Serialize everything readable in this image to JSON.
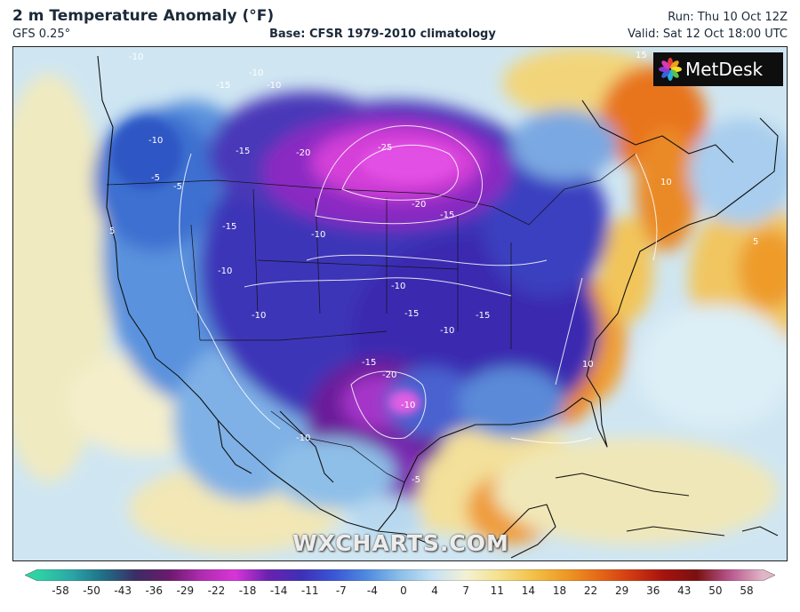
{
  "header": {
    "title": "2 m Temperature Anomaly (°F)",
    "model": "GFS 0.25°",
    "base": "Base: CFSR 1979-2010 climatology",
    "run": "Run: Thu 10 Oct 12Z",
    "valid": "Valid: Sat 12 Oct 18:00 UTC"
  },
  "logo": {
    "text": "MetDesk",
    "icon": "metdesk-flower-icon"
  },
  "watermark": "WXCHARTS.COM",
  "colorbar": {
    "ticks": [
      "-58",
      "-50",
      "-43",
      "-36",
      "-29",
      "-22",
      "-18",
      "-14",
      "-11",
      "-7",
      "-4",
      "0",
      "4",
      "7",
      "11",
      "14",
      "18",
      "22",
      "29",
      "36",
      "43",
      "50",
      "58"
    ],
    "colors": [
      "#2fd3a3",
      "#2ba8a8",
      "#1f6f86",
      "#3c2c63",
      "#6b1a6d",
      "#b12cb1",
      "#d735d7",
      "#6a21b0",
      "#3e2fb8",
      "#3a56d6",
      "#4f8be0",
      "#8bbfe8",
      "#c6e1f3",
      "#f3f1d5",
      "#f5e18d",
      "#f3c24a",
      "#ee9a25",
      "#e66a17",
      "#d23a10",
      "#a5130f",
      "#7a1010",
      "#b7568e",
      "#e0b5c5"
    ]
  },
  "map": {
    "contour_labels": [
      "-10",
      "-10",
      "-10",
      "-15",
      "-10",
      "-15",
      "-20",
      "-25",
      "-20",
      "-15",
      "-15",
      "-10",
      "-10",
      "-10",
      "-5",
      "-5",
      "-10",
      "-15",
      "-10",
      "-15",
      "-20",
      "-15",
      "-10",
      "-10",
      "-5",
      "10",
      "10",
      "15",
      "5",
      "5"
    ]
  },
  "chart_data": {
    "type": "heatmap",
    "variable": "2 m Temperature Anomaly (°F)",
    "model": "GFS 0.25°",
    "base": "CFSR 1979-2010 climatology",
    "run": "Thu 10 Oct 12Z",
    "valid": "Sat 12 Oct 18:00 UTC",
    "colorbar_ticks": [
      -58,
      -50,
      -43,
      -36,
      -29,
      -22,
      -18,
      -14,
      -11,
      -7,
      -4,
      0,
      4,
      7,
      11,
      14,
      18,
      22,
      29,
      36,
      43,
      50,
      58
    ]
  }
}
